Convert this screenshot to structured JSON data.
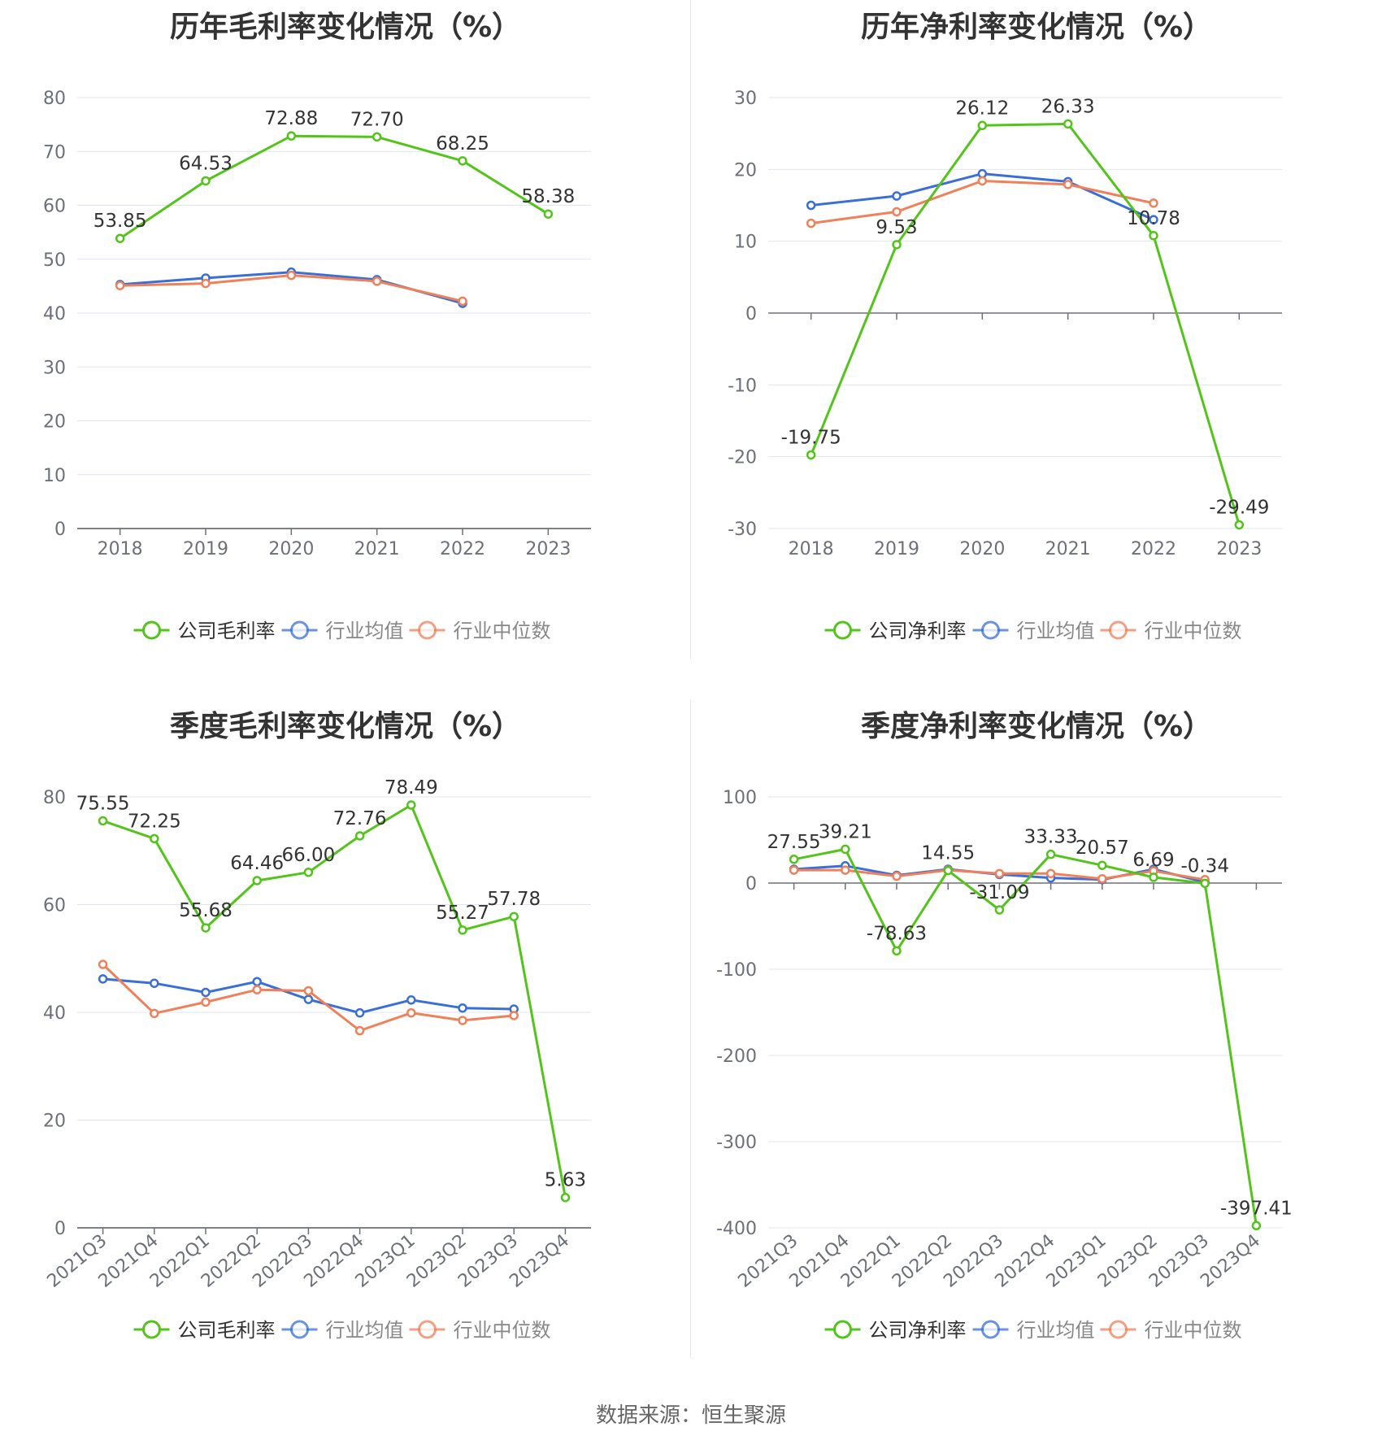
{
  "source": "数据来源：恒生聚源",
  "charts": [
    {
      "id": "annual-gross",
      "type": "line",
      "title": "历年毛利率变化情况（%）",
      "categories": [
        "2018",
        "2019",
        "2020",
        "2021",
        "2022",
        "2023"
      ],
      "ylim": [
        0,
        80
      ],
      "yticks": [
        0,
        10,
        20,
        30,
        40,
        50,
        60,
        70,
        80
      ],
      "rotate_x": false,
      "legend_position": "bottom",
      "series": [
        {
          "name": "公司毛利率",
          "color": "#52c41a",
          "values": [
            53.85,
            64.53,
            72.88,
            72.7,
            68.25,
            58.38
          ],
          "labels": [
            "53.85",
            "64.53",
            "72.88",
            "72.70",
            "68.25",
            "58.38"
          ]
        },
        {
          "name": "行业均值",
          "color": "#3a6fd8",
          "values": [
            45.3,
            46.5,
            47.6,
            46.2,
            41.8,
            null
          ]
        },
        {
          "name": "行业中位数",
          "color": "#f0805a",
          "values": [
            45.1,
            45.5,
            47.0,
            45.9,
            42.2,
            null
          ]
        }
      ]
    },
    {
      "id": "annual-net",
      "type": "line",
      "title": "历年净利率变化情况（%）",
      "categories": [
        "2018",
        "2019",
        "2020",
        "2021",
        "2022",
        "2023"
      ],
      "ylim": [
        -30,
        30
      ],
      "yticks": [
        -30,
        -20,
        -10,
        0,
        10,
        20,
        30
      ],
      "rotate_x": false,
      "legend_position": "bottom",
      "series": [
        {
          "name": "公司净利率",
          "color": "#52c41a",
          "values": [
            -19.75,
            9.53,
            26.12,
            26.33,
            10.78,
            -29.49
          ],
          "labels": [
            "-19.75",
            "9.53",
            "26.12",
            "26.33",
            "10.78",
            "-29.49"
          ]
        },
        {
          "name": "行业均值",
          "color": "#3a6fd8",
          "values": [
            15.0,
            16.3,
            19.4,
            18.3,
            13.0,
            null
          ]
        },
        {
          "name": "行业中位数",
          "color": "#f0805a",
          "values": [
            12.5,
            14.1,
            18.4,
            17.9,
            15.3,
            null
          ]
        }
      ]
    },
    {
      "id": "quarterly-gross",
      "type": "line",
      "title": "季度毛利率变化情况（%）",
      "categories": [
        "2021Q3",
        "2021Q4",
        "2022Q1",
        "2022Q2",
        "2022Q3",
        "2022Q4",
        "2023Q1",
        "2023Q2",
        "2023Q3",
        "2023Q4"
      ],
      "ylim": [
        0,
        80
      ],
      "yticks": [
        0,
        20,
        40,
        60,
        80
      ],
      "rotate_x": true,
      "legend_position": "bottom",
      "series": [
        {
          "name": "公司毛利率",
          "color": "#52c41a",
          "values": [
            75.55,
            72.25,
            55.68,
            64.46,
            66.0,
            72.76,
            78.49,
            55.27,
            57.78,
            5.63
          ],
          "labels": [
            "75.55",
            "72.25",
            "55.68",
            "64.46",
            "66.00",
            "72.76",
            "78.49",
            "55.27",
            "57.78",
            "5.63"
          ]
        },
        {
          "name": "行业均值",
          "color": "#3a6fd8",
          "values": [
            46.2,
            45.4,
            43.7,
            45.7,
            42.4,
            39.9,
            42.3,
            40.8,
            40.6,
            null
          ]
        },
        {
          "name": "行业中位数",
          "color": "#f0805a",
          "values": [
            48.9,
            39.8,
            41.9,
            44.2,
            44.0,
            36.6,
            39.9,
            38.5,
            39.4,
            null
          ]
        }
      ]
    },
    {
      "id": "quarterly-net",
      "type": "line",
      "title": "季度净利率变化情况（%）",
      "categories": [
        "2021Q3",
        "2021Q4",
        "2022Q1",
        "2022Q2",
        "2022Q3",
        "2022Q4",
        "2023Q1",
        "2023Q2",
        "2023Q3",
        "2023Q4"
      ],
      "ylim": [
        -400,
        100
      ],
      "yticks": [
        -400,
        -300,
        -200,
        -100,
        0,
        100
      ],
      "rotate_x": true,
      "legend_position": "bottom",
      "series": [
        {
          "name": "公司净利率",
          "color": "#52c41a",
          "values": [
            27.55,
            39.21,
            -78.63,
            14.55,
            -31.09,
            33.33,
            20.57,
            6.69,
            -0.34,
            -397.41
          ],
          "labels": [
            "27.55",
            "39.21",
            "-78.63",
            "14.55",
            "-31.09",
            "33.33",
            "20.57",
            "6.69",
            "-0.34",
            "-397.41"
          ]
        },
        {
          "name": "行业均值",
          "color": "#3a6fd8",
          "values": [
            16.0,
            20.0,
            9.0,
            16.0,
            10.0,
            6.0,
            4.0,
            16.0,
            1.0,
            null
          ]
        },
        {
          "name": "行业中位数",
          "color": "#f0805a",
          "values": [
            15.0,
            15.0,
            8.0,
            15.0,
            11.0,
            11.0,
            5.0,
            14.0,
            4.0,
            null
          ]
        }
      ]
    }
  ]
}
